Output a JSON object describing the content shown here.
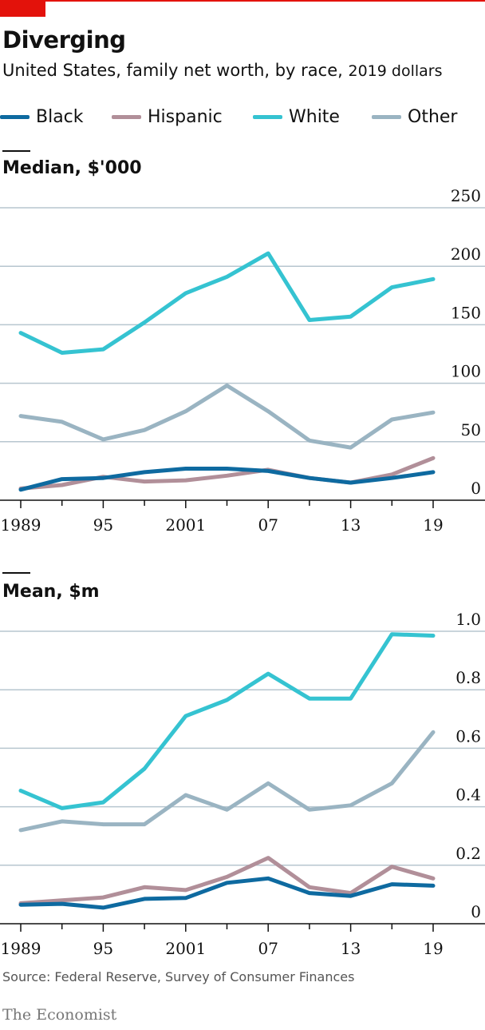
{
  "header": {
    "title": "Diverging",
    "subtitle_main": "United States, family net worth, by race,",
    "subtitle_unit": "2019 dollars"
  },
  "legend": [
    {
      "label": "Black",
      "color": "#0e6aa0"
    },
    {
      "label": "Hispanic",
      "color": "#b18f99"
    },
    {
      "label": "White",
      "color": "#35c3d1"
    },
    {
      "label": "Other",
      "color": "#9ab4c2"
    }
  ],
  "chart_data": [
    {
      "type": "line",
      "title": "Median, $'000",
      "x": [
        1989,
        1992,
        1995,
        1998,
        2001,
        2004,
        2007,
        2010,
        2013,
        2016,
        2019
      ],
      "xtick_values": [
        1989,
        1995,
        2001,
        2007,
        2013,
        2019
      ],
      "xtick_labels": [
        "1989",
        "95",
        "2001",
        "07",
        "13",
        "19"
      ],
      "ylim": [
        0,
        250
      ],
      "yticks": [
        0,
        50,
        100,
        150,
        200,
        250
      ],
      "ytick_labels": [
        "0",
        "50",
        "100",
        "150",
        "200",
        "250"
      ],
      "grid": true,
      "series": [
        {
          "name": "Hispanic",
          "color": "#b18f99",
          "values": [
            10,
            13,
            20,
            16,
            17,
            21,
            26,
            19,
            15,
            22,
            36
          ]
        },
        {
          "name": "Black",
          "color": "#0e6aa0",
          "values": [
            9,
            18,
            19,
            24,
            27,
            27,
            25,
            19,
            15,
            19,
            24
          ]
        },
        {
          "name": "Other",
          "color": "#9ab4c2",
          "values": [
            72,
            67,
            52,
            60,
            76,
            98,
            76,
            51,
            45,
            69,
            75
          ]
        },
        {
          "name": "White",
          "color": "#35c3d1",
          "values": [
            143,
            126,
            129,
            152,
            177,
            191,
            211,
            154,
            157,
            182,
            189
          ]
        }
      ]
    },
    {
      "type": "line",
      "title": "Mean, $m",
      "x": [
        1989,
        1992,
        1995,
        1998,
        2001,
        2004,
        2007,
        2010,
        2013,
        2016,
        2019
      ],
      "xtick_values": [
        1989,
        1995,
        2001,
        2007,
        2013,
        2019
      ],
      "xtick_labels": [
        "1989",
        "95",
        "2001",
        "07",
        "13",
        "19"
      ],
      "ylim": [
        0,
        1.0
      ],
      "yticks": [
        0,
        0.2,
        0.4,
        0.6,
        0.8,
        1.0
      ],
      "ytick_labels": [
        "0",
        "0.2",
        "0.4",
        "0.6",
        "0.8",
        "1.0"
      ],
      "grid": true,
      "series": [
        {
          "name": "Hispanic",
          "color": "#b18f99",
          "values": [
            0.07,
            0.08,
            0.09,
            0.125,
            0.115,
            0.16,
            0.225,
            0.125,
            0.105,
            0.195,
            0.155
          ]
        },
        {
          "name": "Black",
          "color": "#0e6aa0",
          "values": [
            0.065,
            0.068,
            0.055,
            0.085,
            0.088,
            0.14,
            0.155,
            0.105,
            0.095,
            0.135,
            0.13
          ]
        },
        {
          "name": "Other",
          "color": "#9ab4c2",
          "values": [
            0.32,
            0.35,
            0.34,
            0.34,
            0.44,
            0.39,
            0.48,
            0.39,
            0.405,
            0.48,
            0.655
          ]
        },
        {
          "name": "White",
          "color": "#35c3d1",
          "values": [
            0.455,
            0.395,
            0.415,
            0.53,
            0.71,
            0.765,
            0.855,
            0.77,
            0.77,
            0.99,
            0.985
          ]
        }
      ]
    }
  ],
  "footer": {
    "source": "Source: Federal Reserve, Survey of Consumer Finances",
    "brand": "The Economist"
  }
}
